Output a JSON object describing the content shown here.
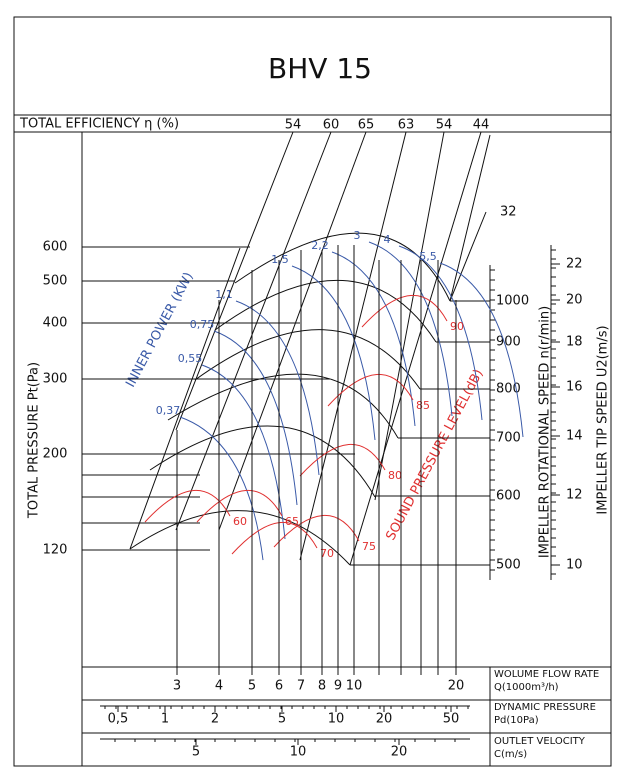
{
  "title": "BHV 15",
  "efficiency": {
    "label": "TOTAL EFFICIENCY η (%)",
    "values": [
      "54",
      "60",
      "65",
      "63",
      "54",
      "44"
    ],
    "extra": "32"
  },
  "pressure": {
    "label": "TOTAL PRESSURE Pt(Pa)",
    "ticks": [
      "600",
      "500",
      "400",
      "300",
      "200",
      "120"
    ]
  },
  "speed": {
    "label": "IMPELLER ROTATIONAL SPEED n(r/min)",
    "ticks": [
      "1000",
      "900",
      "800",
      "700",
      "600",
      "500"
    ]
  },
  "tip_speed": {
    "label": "IMPELLER TIP SPEED U2(m/s)",
    "ticks": [
      "22",
      "20",
      "18",
      "16",
      "14",
      "12",
      "10"
    ]
  },
  "power": {
    "label": "INNER POWER (KW)",
    "values": [
      "0,37",
      "0,55",
      "0,75",
      "1,1",
      "1,5",
      "2,2",
      "3",
      "4",
      "5,5"
    ]
  },
  "sound": {
    "label": "SOUND PRESSURE LEVEL(dB)",
    "values": [
      "60",
      "65",
      "70",
      "75",
      "80",
      "85",
      "90"
    ]
  },
  "flow": {
    "label": "WOLUME FLOW RATE",
    "unit": "Q(1000m³/h)",
    "ticks": [
      "3",
      "4",
      "5",
      "6",
      "7",
      "8",
      "9",
      "10",
      "20"
    ]
  },
  "dynamic": {
    "label": "DYNAMIC PRESSURE",
    "unit": "Pd(10Pa)",
    "ticks": [
      "0,5",
      "1",
      "2",
      "5",
      "10",
      "20",
      "50"
    ]
  },
  "velocity": {
    "label": "OUTLET VELOCITY",
    "unit": "C(m/s)",
    "ticks": [
      "5",
      "10",
      "20"
    ]
  }
}
